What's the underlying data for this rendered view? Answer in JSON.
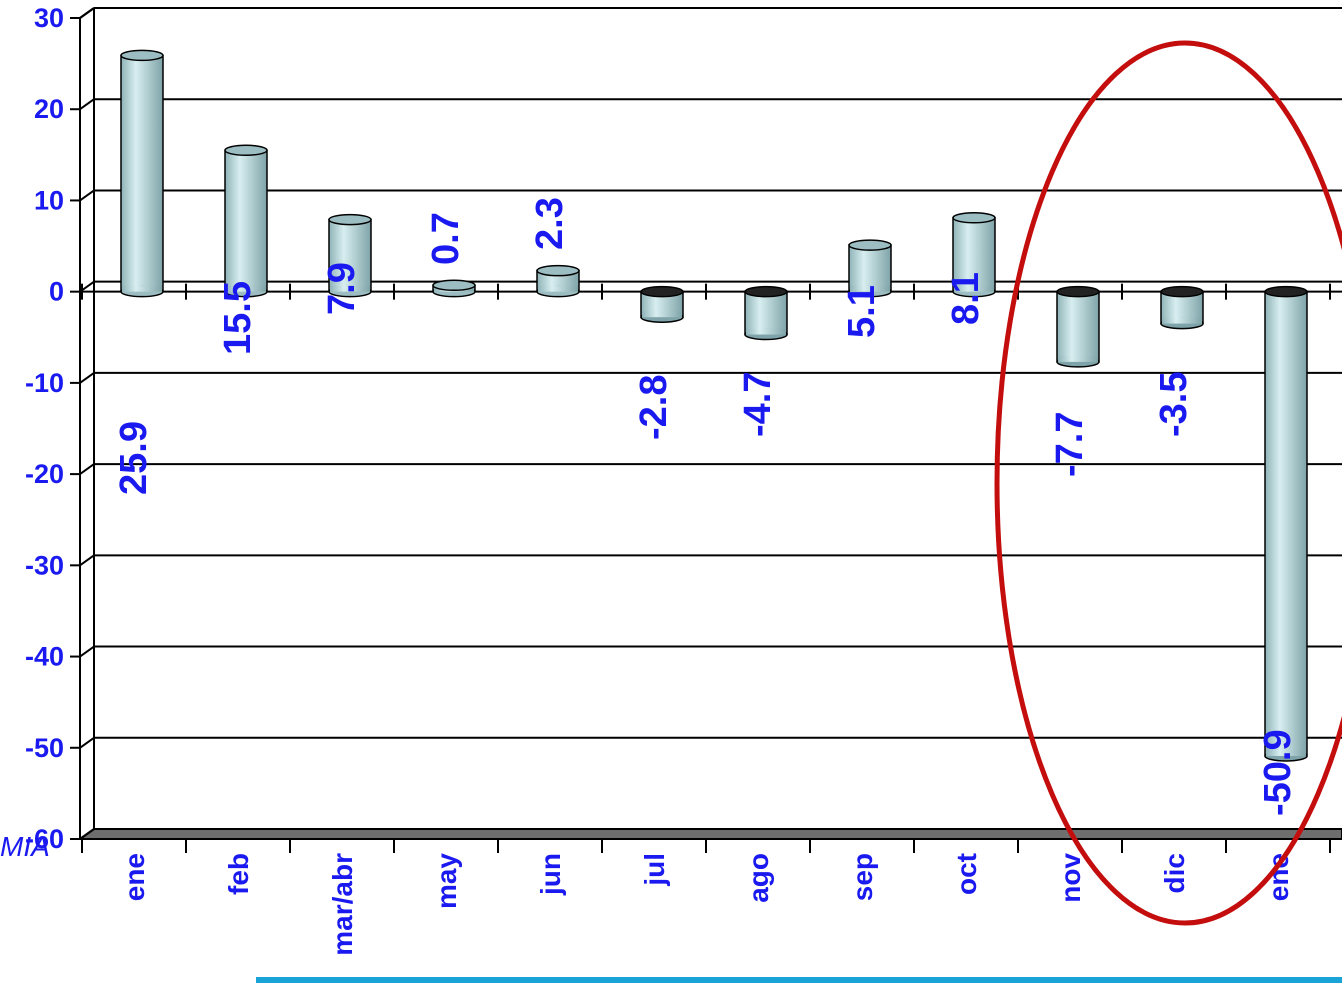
{
  "footer_text": "MIA",
  "colors": {
    "label": "#1a1af0",
    "bar_fill": "#b8d8dc",
    "bar_top": "#9cbec3",
    "floor": "#6e6e6e",
    "ellipse": "#c40d0d",
    "footer_line": "#1aa3d6"
  },
  "chart_data": {
    "type": "bar",
    "title": "",
    "xlabel": "",
    "ylabel": "",
    "categories": [
      "ene",
      "feb",
      "mar/abr",
      "may",
      "jun",
      "jul",
      "ago",
      "sep",
      "oct",
      "nov",
      "dic",
      "ene"
    ],
    "values": [
      25.9,
      15.5,
      7.9,
      0.7,
      2.3,
      -2.8,
      -4.7,
      5.1,
      8.1,
      -7.7,
      -3.5,
      -50.9
    ],
    "data_labels": [
      "25.9",
      "15.5",
      "7.9",
      "0.7",
      "2.3",
      "-2.8",
      "-4.7",
      "5.1",
      "8.1",
      "-7.7",
      "-3.5",
      "-50.9"
    ],
    "ylim": [
      -60,
      30
    ],
    "yticks": [
      30,
      20,
      10,
      0,
      -10,
      -20,
      -30,
      -40,
      -50,
      -60
    ],
    "grid": true,
    "legend": "none",
    "style": "3d-cylinder",
    "annotation": "red ellipse highlighting nov, dic, ene"
  }
}
